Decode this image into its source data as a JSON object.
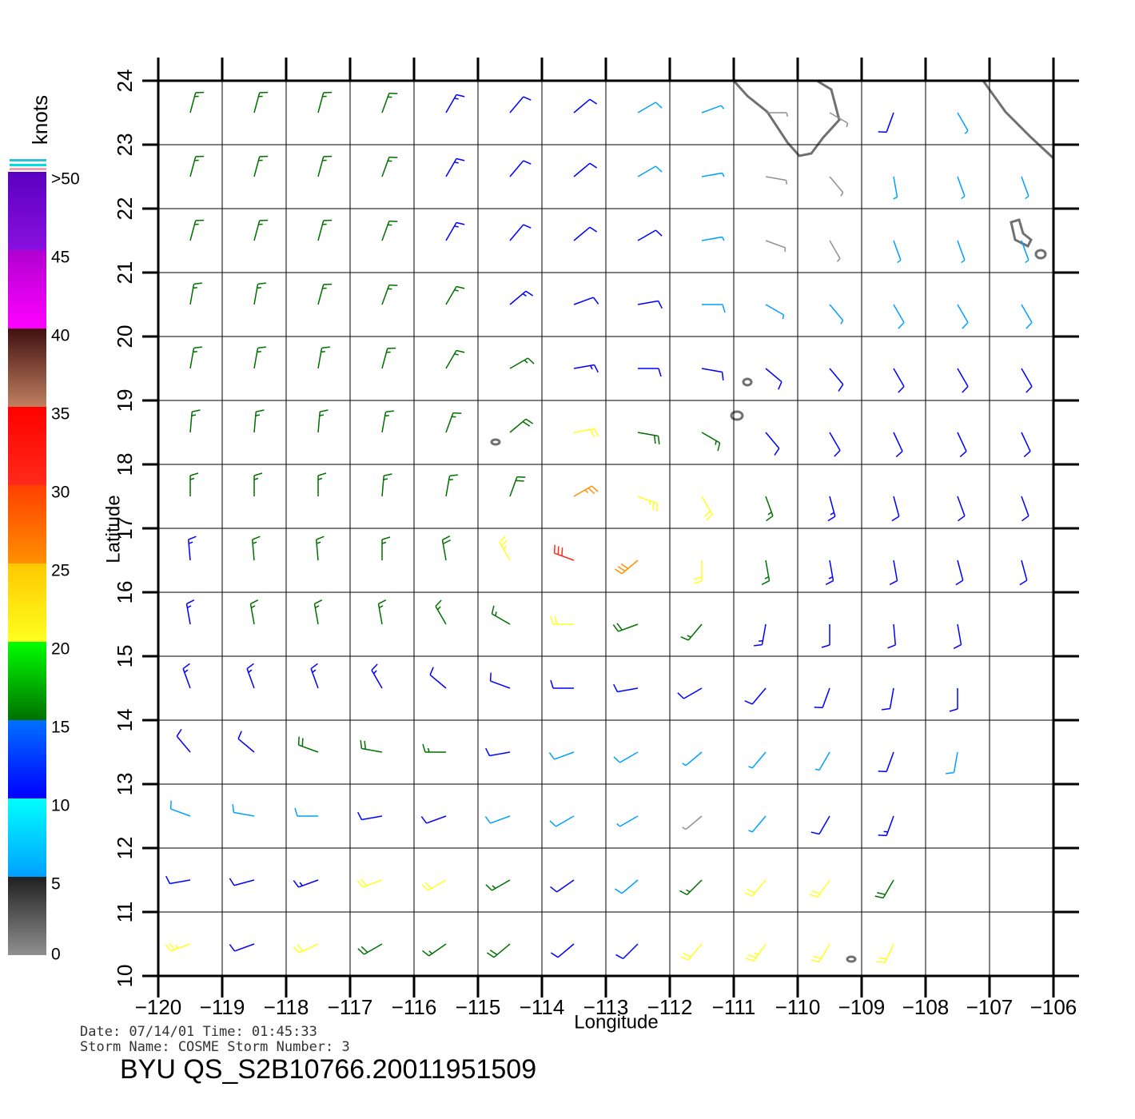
{
  "map": {
    "title": "BYU  QS_S2B10766.20011951509",
    "date_line": "Date: 07/14/01   Time: 01:45:33",
    "storm_line": "Storm  Name: COSME   Storm  Number: 3",
    "xlabel": "Longitude",
    "ylabel": "Latitude",
    "xlim": [
      -120,
      -106
    ],
    "ylim": [
      10,
      24
    ],
    "xticks": [
      {
        "value": -120,
        "label": "−120"
      },
      {
        "value": -119,
        "label": "−119"
      },
      {
        "value": -118,
        "label": "−118"
      },
      {
        "value": -117,
        "label": "−117"
      },
      {
        "value": -116,
        "label": "−116"
      },
      {
        "value": -115,
        "label": "−115"
      },
      {
        "value": -114,
        "label": "−114"
      },
      {
        "value": -113,
        "label": "−113"
      },
      {
        "value": -112,
        "label": "−112"
      },
      {
        "value": -111,
        "label": "−111"
      },
      {
        "value": -110,
        "label": "−110"
      },
      {
        "value": -109,
        "label": "−109"
      },
      {
        "value": -108,
        "label": "−108"
      },
      {
        "value": -107,
        "label": "−107"
      },
      {
        "value": -106,
        "label": "−106"
      }
    ],
    "yticks": [
      10,
      11,
      12,
      13,
      14,
      15,
      16,
      17,
      18,
      19,
      20,
      21,
      22,
      23,
      24
    ],
    "colorbar": {
      "label": "knots",
      "ticks": [
        0,
        5,
        10,
        15,
        20,
        25,
        30,
        35,
        40,
        45,
        {
          "value": 50,
          "label": ">50"
        }
      ],
      "colors": [
        [
          "#909090",
          "#202020"
        ],
        [
          "#00a0ff",
          "#00ffff"
        ],
        [
          "#0000ff",
          "#0070ff"
        ],
        [
          "#007000",
          "#00ff00"
        ],
        [
          "#ffff20",
          "#ffc800"
        ],
        [
          "#ff9000",
          "#ff4000"
        ],
        [
          "#ff2a1a",
          "#ff0000"
        ],
        [
          "#c08060",
          "#401010"
        ],
        [
          "#ff00ff",
          "#b000d0"
        ],
        [
          "#8a10e0",
          "#5a00c0"
        ]
      ]
    },
    "wind": {
      "lons": [
        -119.5,
        -118.5,
        -117.5,
        -116.5,
        -115.5,
        -114.5,
        -113.5,
        -112.5,
        -111.5,
        -110.5,
        -109.5,
        -108.5,
        -107.5,
        -106.5
      ],
      "lats": [
        23.5,
        22.5,
        21.5,
        20.5,
        19.5,
        18.5,
        17.5,
        16.5,
        15.5,
        14.5,
        13.5,
        12.5,
        11.5,
        10.5
      ],
      "speed": [
        [
          17,
          17,
          17,
          16,
          13,
          12,
          11,
          9,
          7,
          4,
          3,
          12,
          6,
          null
        ],
        [
          17,
          17,
          17,
          16,
          13,
          12,
          11,
          9,
          7,
          4,
          3,
          5,
          7,
          7
        ],
        [
          17,
          17,
          17,
          16,
          14,
          12,
          11,
          10,
          7,
          3,
          4,
          6,
          7,
          6
        ],
        [
          17,
          17,
          17,
          16,
          15,
          13,
          12,
          10,
          8,
          7,
          7,
          8,
          8,
          8
        ],
        [
          17,
          17,
          17,
          16,
          16,
          16,
          14,
          12,
          11,
          12,
          12,
          12,
          11,
          11
        ],
        [
          16,
          17,
          17,
          16,
          16,
          18,
          21,
          19,
          17,
          12,
          12,
          12,
          12,
          12
        ],
        [
          15,
          16,
          17,
          16,
          17,
          19,
          27,
          24,
          21,
          16,
          13,
          12,
          12,
          12
        ],
        [
          14,
          15,
          16,
          16,
          19,
          24,
          31,
          28,
          22,
          17,
          13,
          12,
          12,
          12
        ],
        [
          14,
          15,
          16,
          15,
          16,
          17,
          20,
          19,
          16,
          14,
          12,
          12,
          11,
          null
        ],
        [
          13,
          14,
          13,
          13,
          12,
          12,
          11,
          10,
          10,
          11,
          12,
          12,
          11,
          null
        ],
        [
          12,
          12,
          18,
          19,
          17,
          10,
          8,
          8,
          6,
          5,
          6,
          10,
          8,
          null
        ],
        [
          8,
          9,
          8,
          10,
          10,
          9,
          8,
          5,
          4,
          7,
          12,
          13,
          null,
          null
        ],
        [
          11,
          12,
          14,
          20,
          20,
          15,
          10,
          9,
          16,
          22,
          20,
          18,
          null,
          null
        ],
        [
          24,
          11,
          22,
          19,
          17,
          18,
          10,
          12,
          21,
          24,
          22,
          21,
          null,
          null
        ]
      ],
      "direction": [
        [
          15,
          15,
          15,
          20,
          30,
          40,
          50,
          60,
          70,
          90,
          120,
          200,
          150,
          null
        ],
        [
          15,
          15,
          15,
          20,
          30,
          40,
          50,
          60,
          80,
          100,
          140,
          170,
          160,
          160
        ],
        [
          15,
          15,
          15,
          20,
          30,
          40,
          50,
          60,
          80,
          110,
          150,
          160,
          160,
          160
        ],
        [
          10,
          10,
          15,
          20,
          30,
          50,
          70,
          80,
          90,
          120,
          140,
          150,
          150,
          150
        ],
        [
          10,
          10,
          10,
          15,
          30,
          60,
          80,
          90,
          100,
          130,
          140,
          150,
          150,
          150
        ],
        [
          5,
          5,
          5,
          10,
          20,
          50,
          80,
          100,
          120,
          140,
          150,
          155,
          155,
          155
        ],
        [
          0,
          0,
          0,
          5,
          10,
          20,
          60,
          110,
          150,
          160,
          165,
          165,
          160,
          160
        ],
        [
          355,
          355,
          355,
          0,
          350,
          330,
          290,
          230,
          180,
          170,
          170,
          170,
          165,
          165
        ],
        [
          350,
          350,
          350,
          350,
          330,
          300,
          270,
          250,
          220,
          190,
          180,
          175,
          170,
          null
        ],
        [
          340,
          340,
          340,
          330,
          310,
          290,
          270,
          260,
          240,
          220,
          200,
          190,
          180,
          null
        ],
        [
          320,
          310,
          290,
          280,
          270,
          260,
          250,
          240,
          230,
          220,
          210,
          200,
          190,
          null
        ],
        [
          290,
          280,
          270,
          260,
          250,
          250,
          240,
          240,
          230,
          220,
          210,
          200,
          null,
          null
        ],
        [
          260,
          255,
          250,
          250,
          240,
          240,
          235,
          230,
          225,
          220,
          215,
          210,
          null,
          null
        ],
        [
          250,
          250,
          245,
          240,
          235,
          230,
          230,
          225,
          220,
          215,
          210,
          205,
          null,
          null
        ]
      ]
    }
  }
}
